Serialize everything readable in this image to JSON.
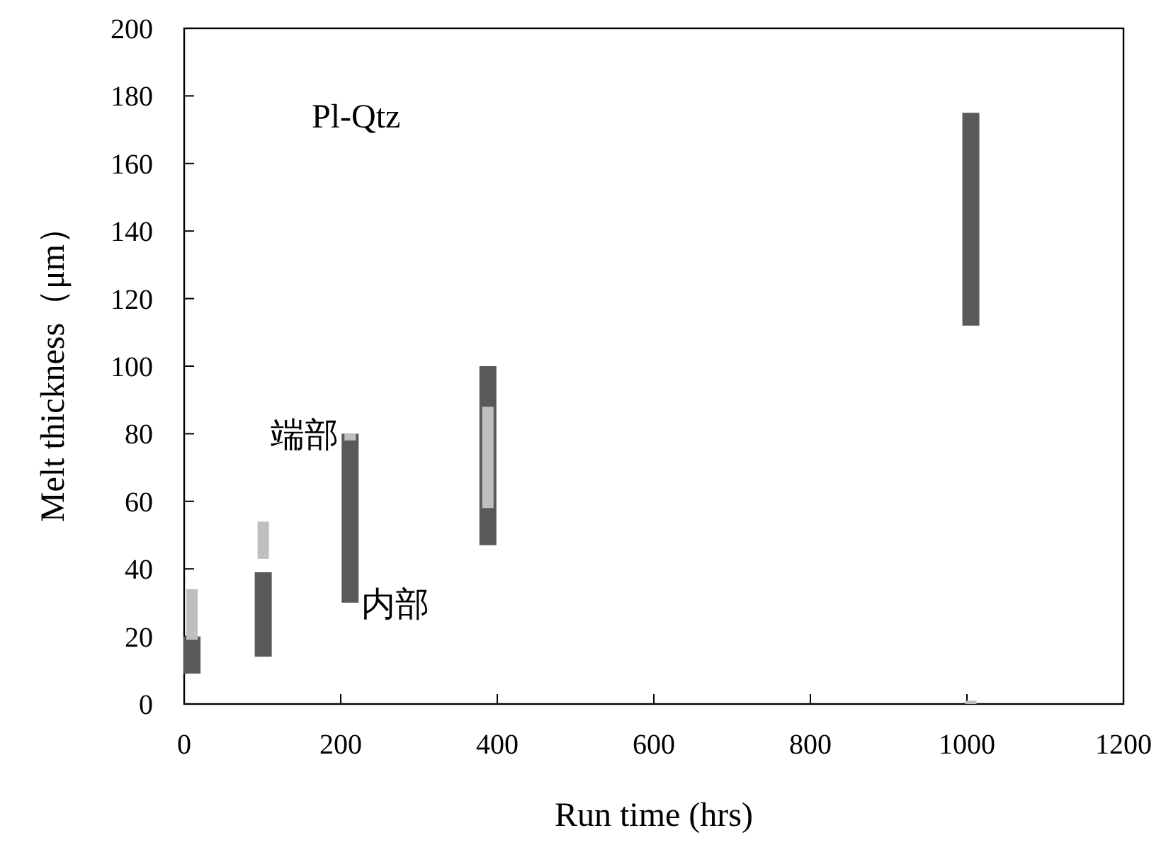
{
  "chart_data": {
    "type": "bar",
    "xlabel": "Run time (hrs)",
    "ylabel": "Melt thickness（μm）",
    "x": [
      10,
      101,
      212,
      388,
      1005
    ],
    "series": [
      {
        "color": "#595959",
        "base": [
          9,
          14,
          30,
          47,
          112
        ],
        "values": [
          11,
          25,
          50,
          53,
          63
        ]
      },
      {
        "color": "#bfbfbf",
        "base": [
          19,
          43,
          78,
          58,
          0
        ],
        "values": [
          15,
          11,
          2,
          30,
          1
        ]
      }
    ],
    "xlim": [
      0,
      1200
    ],
    "xticks": [
      0,
      200,
      400,
      600,
      800,
      1000,
      1200
    ],
    "ylim": [
      0,
      200
    ],
    "yticks": [
      0,
      20,
      40,
      60,
      80,
      100,
      120,
      140,
      160,
      180,
      200
    ],
    "annotations": [
      "Pl-Qtz",
      {
        "text": "端部",
        "x": 212,
        "y": 80
      },
      {
        "text": "内部",
        "x": 212,
        "y": 30
      }
    ],
    "grid": false
  }
}
